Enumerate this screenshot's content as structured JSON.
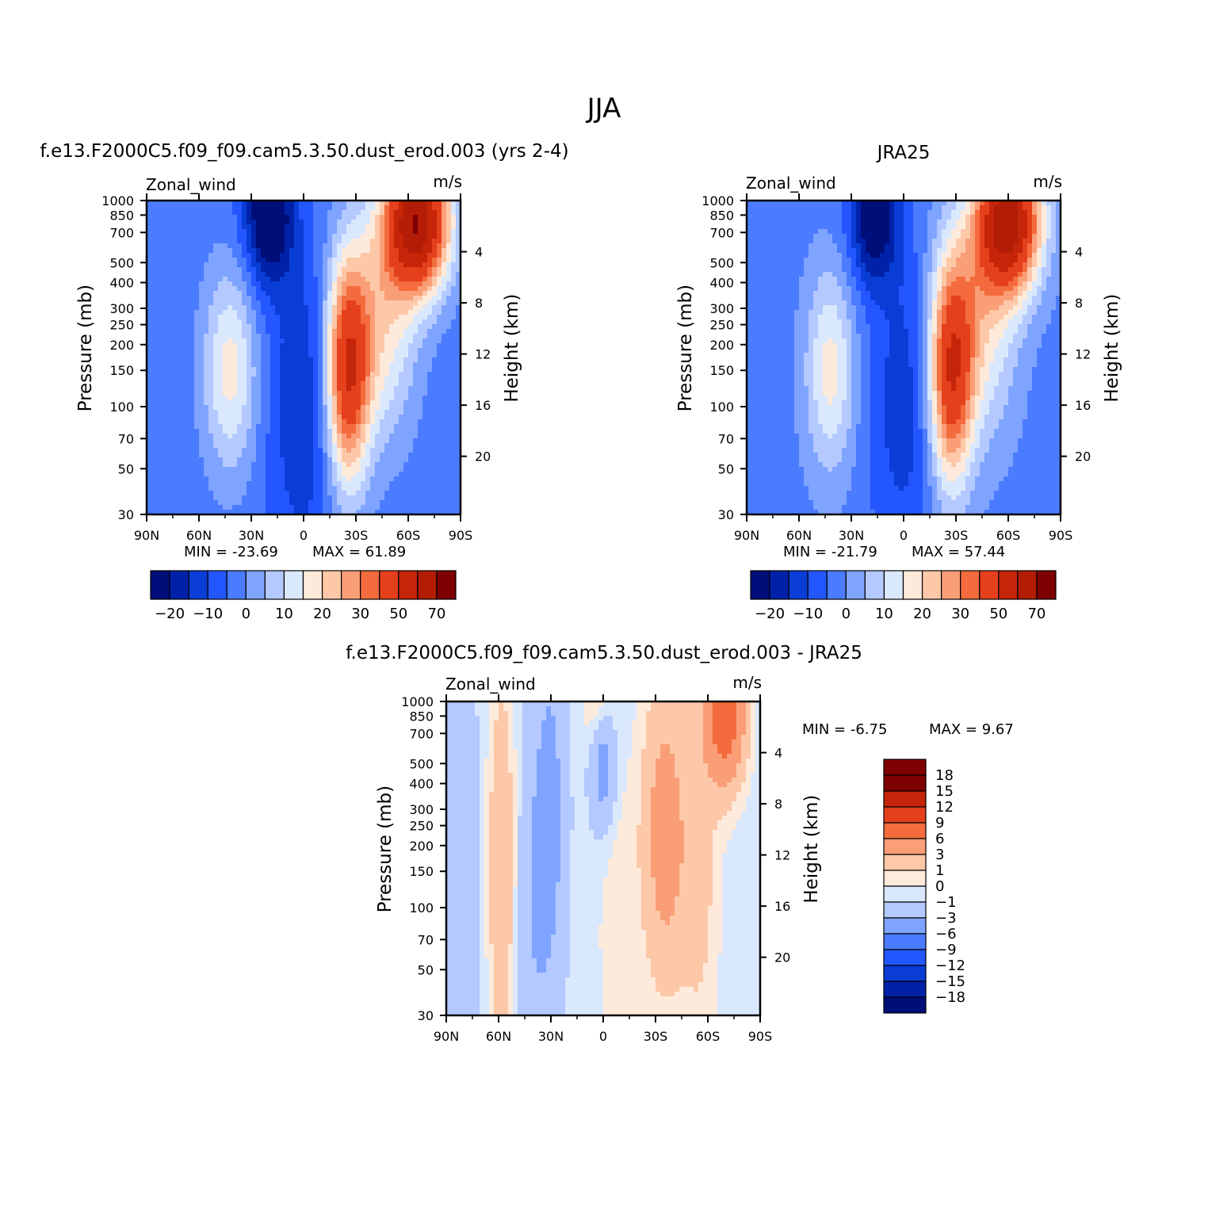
{
  "page_title": "JJA",
  "colors": {
    "main_scale": [
      "#000e7a",
      "#0022a8",
      "#0a3dd6",
      "#2356ff",
      "#4b7bff",
      "#7fa4ff",
      "#b4c9ff",
      "#dae8fd",
      "#feeadb",
      "#fdc8a8",
      "#fa9e78",
      "#f46c3d",
      "#e5401c",
      "#c52508",
      "#b31d06",
      "#7f0000"
    ],
    "diff_scale": [
      "#000e7a",
      "#0022a8",
      "#0a3dd6",
      "#2356ff",
      "#4b7bff",
      "#7fa4ff",
      "#b4c9ff",
      "#dae8fd",
      "#feeadb",
      "#fdc8a8",
      "#fa9e78",
      "#f46c3d",
      "#e5401c",
      "#c52508",
      "#7f0000"
    ]
  },
  "chart_data": [
    {
      "type": "heatmap",
      "title": "f.e13.F2000C5.f09_f09.cam5.3.50.dust_erod.003 (yrs 2-4)",
      "left_label": "Zonal_wind",
      "right_label": "m/s",
      "xlabel": "",
      "ylabel": "Pressure (mb)",
      "y2label": "Height (km)",
      "x_ticks": [
        "90N",
        "60N",
        "30N",
        "0",
        "30S",
        "60S",
        "90S"
      ],
      "y_ticks": [
        "30",
        "50",
        "70",
        "100",
        "150",
        "200",
        "250",
        "300",
        "400",
        "500",
        "700",
        "850",
        "1000"
      ],
      "y2_ticks": [
        "20",
        "16",
        "12",
        "8",
        "4"
      ],
      "y_scale": "log",
      "ylim": [
        1000,
        30
      ],
      "xlim": [
        90,
        -90
      ],
      "min_label": "MIN = -23.69",
      "max_label": "MAX = 61.89",
      "colorbar_labels": [
        "-20",
        "-10",
        "0",
        "10",
        "20",
        "30",
        "50",
        "70"
      ],
      "fields": [
        {
          "lat": -65,
          "p": 38,
          "amp": 66,
          "wx": 13,
          "wz": 0.55
        },
        {
          "lat": -25,
          "p": 200,
          "amp": 46,
          "wx": 9,
          "wz": 0.9
        },
        {
          "lat": -45,
          "p": 120,
          "amp": 20,
          "wx": 14,
          "wz": 0.9
        },
        {
          "lat": 20,
          "p": 35,
          "amp": -26,
          "wx": 10,
          "wz": 0.55
        },
        {
          "lat": 0,
          "p": 300,
          "amp": -12,
          "wx": 14,
          "wz": 1.2
        },
        {
          "lat": 42,
          "p": 200,
          "amp": 20,
          "wx": 11,
          "wz": 0.8
        }
      ],
      "background": -8
    },
    {
      "type": "heatmap",
      "title": "JRA25",
      "left_label": "Zonal_wind",
      "right_label": "m/s",
      "xlabel": "",
      "ylabel": "Pressure (mb)",
      "y2label": "Height (km)",
      "x_ticks": [
        "90N",
        "60N",
        "30N",
        "0",
        "30S",
        "60S",
        "90S"
      ],
      "y_ticks": [
        "30",
        "50",
        "70",
        "100",
        "150",
        "200",
        "250",
        "300",
        "400",
        "500",
        "700",
        "850",
        "1000"
      ],
      "y2_ticks": [
        "20",
        "16",
        "12",
        "8",
        "4"
      ],
      "y_scale": "log",
      "ylim": [
        1000,
        30
      ],
      "xlim": [
        90,
        -90
      ],
      "min_label": "MIN = -21.79",
      "max_label": "MAX = 57.44",
      "colorbar_labels": [
        "-20",
        "-10",
        "0",
        "10",
        "20",
        "30",
        "50",
        "70"
      ],
      "fields": [
        {
          "lat": -60,
          "p": 38,
          "amp": 62,
          "wx": 13,
          "wz": 0.55
        },
        {
          "lat": -27,
          "p": 200,
          "amp": 44,
          "wx": 9,
          "wz": 0.9
        },
        {
          "lat": -45,
          "p": 120,
          "amp": 18,
          "wx": 14,
          "wz": 0.9
        },
        {
          "lat": 17,
          "p": 35,
          "amp": -24,
          "wx": 10,
          "wz": 0.55
        },
        {
          "lat": 0,
          "p": 300,
          "amp": -11,
          "wx": 14,
          "wz": 1.2
        },
        {
          "lat": 42,
          "p": 200,
          "amp": 19,
          "wx": 10,
          "wz": 0.8
        }
      ],
      "background": -7
    },
    {
      "type": "heatmap",
      "title": "f.e13.F2000C5.f09_f09.cam5.3.50.dust_erod.003 - JRA25",
      "left_label": "Zonal_wind",
      "right_label": "m/s",
      "xlabel": "",
      "ylabel": "Pressure (mb)",
      "y2label": "Height (km)",
      "x_ticks": [
        "90N",
        "60N",
        "30N",
        "0",
        "30S",
        "60S",
        "90S"
      ],
      "y_ticks": [
        "30",
        "50",
        "70",
        "100",
        "150",
        "200",
        "250",
        "300",
        "400",
        "500",
        "700",
        "850",
        "1000"
      ],
      "y2_ticks": [
        "20",
        "16",
        "12",
        "8",
        "4"
      ],
      "y_scale": "log",
      "ylim": [
        1000,
        30
      ],
      "xlim": [
        90,
        -90
      ],
      "min_label": "MIN = -6.75",
      "max_label": "MAX = 9.67",
      "colorbar_labels": [
        "18",
        "15",
        "12",
        "9",
        "6",
        "3",
        "1",
        "0",
        "-1",
        "-3",
        "-6",
        "-9",
        "-12",
        "-15",
        "-18"
      ],
      "fields": [
        {
          "lat": 58,
          "p": 200,
          "amp": 3.4,
          "wx": 6,
          "wz": 1.6
        },
        {
          "lat": 30,
          "p": 100,
          "amp": -3,
          "wx": 6,
          "wz": 1.3
        },
        {
          "lat": 3,
          "p": 30,
          "amp": 2.2,
          "wx": 6,
          "wz": 0.4
        },
        {
          "lat": 0,
          "p": 60,
          "amp": -4,
          "wx": 5,
          "wz": 0.5
        },
        {
          "lat": -35,
          "p": 130,
          "amp": 5,
          "wx": 9,
          "wz": 1.2
        },
        {
          "lat": -70,
          "p": 35,
          "amp": 9,
          "wx": 8,
          "wz": 0.55
        },
        {
          "lat": -55,
          "p": 200,
          "amp": 2.2,
          "wx": 8,
          "wz": 1.4
        },
        {
          "lat": -8,
          "p": 400,
          "amp": 1.2,
          "wx": 8,
          "wz": 1.4
        },
        {
          "lat": 82,
          "p": 300,
          "amp": -2.2,
          "wx": 8,
          "wz": 1.8
        },
        {
          "lat": 40,
          "p": 300,
          "amp": -2.2,
          "wx": 8,
          "wz": 1.5
        }
      ],
      "background": -0.6
    }
  ]
}
